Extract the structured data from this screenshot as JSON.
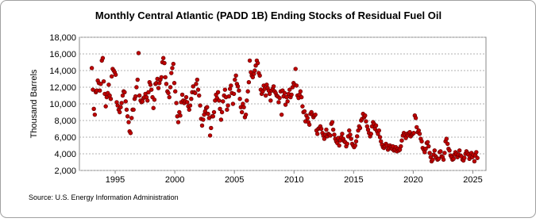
{
  "chart_data": {
    "type": "scatter",
    "title": "Monthly Central Atlantic (PADD 1B) Ending Stocks of Residual Fuel Oil",
    "y_label": "Thousand Barrels",
    "source": "Source: U.S. Energy Information Administration",
    "color": "#c00000",
    "grid": true,
    "xlim": [
      1992,
      2026.1
    ],
    "xticks": [
      1995,
      2000,
      2005,
      2010,
      2015,
      2020,
      2025
    ],
    "ylim": [
      2000,
      18000
    ],
    "yticks": [
      {
        "value": 2000,
        "label": "2,000"
      },
      {
        "value": 4000,
        "label": "4,000"
      },
      {
        "value": 6000,
        "label": "6,000"
      },
      {
        "value": 8000,
        "label": "8,000"
      },
      {
        "value": 10000,
        "label": "10,000"
      },
      {
        "value": 12000,
        "label": "12,000"
      },
      {
        "value": 14000,
        "label": "14,000"
      },
      {
        "value": 16000,
        "label": "16,000"
      },
      {
        "value": 18000,
        "label": "18,000"
      }
    ],
    "x": [
      1993.04,
      1993.13,
      1993.21,
      1993.29,
      1993.38,
      1993.46,
      1993.54,
      1993.63,
      1993.71,
      1993.79,
      1993.88,
      1993.96,
      1994.04,
      1994.13,
      1994.21,
      1994.29,
      1994.38,
      1994.46,
      1994.54,
      1994.63,
      1994.71,
      1994.79,
      1994.88,
      1994.96,
      1995.04,
      1995.13,
      1995.21,
      1995.29,
      1995.38,
      1995.46,
      1995.54,
      1995.63,
      1995.71,
      1995.79,
      1995.88,
      1995.96,
      1996.04,
      1996.13,
      1996.21,
      1996.29,
      1996.38,
      1996.46,
      1996.54,
      1996.63,
      1996.71,
      1996.79,
      1996.88,
      1996.96,
      1997.04,
      1997.13,
      1997.21,
      1997.29,
      1997.38,
      1997.46,
      1997.54,
      1997.63,
      1997.71,
      1997.79,
      1997.88,
      1997.96,
      1998.04,
      1998.13,
      1998.21,
      1998.29,
      1998.38,
      1998.46,
      1998.54,
      1998.63,
      1998.71,
      1998.79,
      1998.88,
      1998.96,
      1999.04,
      1999.13,
      1999.21,
      1999.29,
      1999.38,
      1999.46,
      1999.54,
      1999.63,
      1999.71,
      1999.79,
      1999.88,
      1999.96,
      2000.04,
      2000.13,
      2000.21,
      2000.29,
      2000.38,
      2000.46,
      2000.54,
      2000.63,
      2000.71,
      2000.79,
      2000.88,
      2000.96,
      2001.04,
      2001.13,
      2001.21,
      2001.29,
      2001.38,
      2001.46,
      2001.54,
      2001.63,
      2001.71,
      2001.79,
      2001.88,
      2001.96,
      2002.04,
      2002.13,
      2002.21,
      2002.29,
      2002.38,
      2002.46,
      2002.54,
      2002.63,
      2002.71,
      2002.79,
      2002.88,
      2002.96,
      2003.04,
      2003.13,
      2003.21,
      2003.29,
      2003.38,
      2003.46,
      2003.54,
      2003.63,
      2003.71,
      2003.79,
      2003.88,
      2003.96,
      2004.04,
      2004.13,
      2004.21,
      2004.29,
      2004.38,
      2004.46,
      2004.54,
      2004.63,
      2004.71,
      2004.79,
      2004.88,
      2004.96,
      2005.04,
      2005.13,
      2005.21,
      2005.29,
      2005.38,
      2005.46,
      2005.54,
      2005.63,
      2005.71,
      2005.79,
      2005.88,
      2005.96,
      2006.04,
      2006.13,
      2006.21,
      2006.29,
      2006.38,
      2006.46,
      2006.54,
      2006.63,
      2006.71,
      2006.79,
      2006.88,
      2006.96,
      2007.04,
      2007.13,
      2007.21,
      2007.29,
      2007.38,
      2007.46,
      2007.54,
      2007.63,
      2007.71,
      2007.79,
      2007.88,
      2007.96,
      2008.04,
      2008.13,
      2008.21,
      2008.29,
      2008.38,
      2008.46,
      2008.54,
      2008.63,
      2008.71,
      2008.79,
      2008.88,
      2008.96,
      2009.04,
      2009.13,
      2009.21,
      2009.29,
      2009.38,
      2009.46,
      2009.54,
      2009.63,
      2009.71,
      2009.79,
      2009.88,
      2009.96,
      2010.04,
      2010.13,
      2010.21,
      2010.29,
      2010.38,
      2010.46,
      2010.54,
      2010.63,
      2010.71,
      2010.79,
      2010.88,
      2010.96,
      2011.04,
      2011.13,
      2011.21,
      2011.29,
      2011.38,
      2011.46,
      2011.54,
      2011.63,
      2011.71,
      2011.79,
      2011.88,
      2011.96,
      2012.04,
      2012.13,
      2012.21,
      2012.29,
      2012.38,
      2012.46,
      2012.54,
      2012.63,
      2012.71,
      2012.79,
      2012.88,
      2012.96,
      2013.04,
      2013.13,
      2013.21,
      2013.29,
      2013.38,
      2013.46,
      2013.54,
      2013.63,
      2013.71,
      2013.79,
      2013.88,
      2013.96,
      2014.04,
      2014.13,
      2014.21,
      2014.29,
      2014.38,
      2014.46,
      2014.54,
      2014.63,
      2014.71,
      2014.79,
      2014.88,
      2014.96,
      2015.04,
      2015.13,
      2015.21,
      2015.29,
      2015.38,
      2015.46,
      2015.54,
      2015.63,
      2015.71,
      2015.79,
      2015.88,
      2015.96,
      2016.04,
      2016.13,
      2016.21,
      2016.29,
      2016.38,
      2016.46,
      2016.54,
      2016.63,
      2016.71,
      2016.79,
      2016.88,
      2016.96,
      2017.04,
      2017.13,
      2017.21,
      2017.29,
      2017.38,
      2017.46,
      2017.54,
      2017.63,
      2017.71,
      2017.79,
      2017.88,
      2017.96,
      2018.04,
      2018.13,
      2018.21,
      2018.29,
      2018.38,
      2018.46,
      2018.54,
      2018.63,
      2018.71,
      2018.79,
      2018.88,
      2018.96,
      2019.04,
      2019.13,
      2019.21,
      2019.29,
      2019.38,
      2019.46,
      2019.54,
      2019.63,
      2019.71,
      2019.79,
      2019.88,
      2019.96,
      2020.04,
      2020.13,
      2020.21,
      2020.29,
      2020.38,
      2020.46,
      2020.54,
      2020.63,
      2020.71,
      2020.79,
      2020.88,
      2020.96,
      2021.04,
      2021.13,
      2021.21,
      2021.29,
      2021.38,
      2021.46,
      2021.54,
      2021.63,
      2021.71,
      2021.79,
      2021.88,
      2021.96,
      2022.04,
      2022.13,
      2022.21,
      2022.29,
      2022.38,
      2022.46,
      2022.54,
      2022.63,
      2022.71,
      2022.79,
      2022.88,
      2022.96,
      2023.04,
      2023.13,
      2023.21,
      2023.29,
      2023.38,
      2023.46,
      2023.54,
      2023.63,
      2023.71,
      2023.79,
      2023.88,
      2023.96,
      2024.04,
      2024.13,
      2024.21,
      2024.29,
      2024.38,
      2024.46,
      2024.54,
      2024.63,
      2024.71,
      2024.79,
      2024.88,
      2024.96,
      2025.04,
      2025.13,
      2025.21,
      2025.29,
      2025.38
    ],
    "values": [
      14300,
      11700,
      9400,
      8700,
      11400,
      11600,
      12800,
      12500,
      11600,
      12400,
      15200,
      15500,
      12700,
      11200,
      9700,
      10800,
      11300,
      12300,
      11000,
      10600,
      13300,
      14200,
      14000,
      13800,
      13500,
      10200,
      9800,
      9300,
      9000,
      9600,
      10100,
      11000,
      11500,
      11400,
      10300,
      9300,
      8500,
      7800,
      6700,
      6500,
      8300,
      9300,
      9300,
      10600,
      10900,
      12000,
      12900,
      16100,
      11000,
      10400,
      10200,
      10300,
      10700,
      10800,
      11200,
      10800,
      10400,
      11400,
      12600,
      12300,
      11700,
      10800,
      9500,
      10500,
      12400,
      12500,
      13000,
      11900,
      12500,
      12900,
      13200,
      15000,
      15500,
      14900,
      13200,
      12400,
      11500,
      11300,
      10800,
      12000,
      13700,
      14300,
      14800,
      12500,
      11500,
      10100,
      8500,
      7800,
      9000,
      8600,
      10200,
      11100,
      10400,
      10100,
      10300,
      10800,
      10200,
      9700,
      9300,
      9800,
      10600,
      11400,
      12100,
      11400,
      11300,
      12400,
      12900,
      11700,
      11000,
      9800,
      8200,
      7400,
      8100,
      8700,
      9100,
      9500,
      9600,
      8800,
      8300,
      6200,
      7100,
      8500,
      8500,
      9000,
      10400,
      11100,
      10700,
      11400,
      10400,
      9400,
      8100,
      9000,
      10300,
      11000,
      11700,
      10800,
      9300,
      9800,
      10900,
      11800,
      12200,
      11300,
      10000,
      11200,
      12900,
      13400,
      12400,
      12100,
      11600,
      10600,
      9600,
      9000,
      10000,
      9600,
      8400,
      8700,
      10400,
      11500,
      12600,
      15200,
      13800,
      13400,
      13200,
      13600,
      14000,
      14600,
      15200,
      14900,
      13700,
      13400,
      11700,
      11200,
      11500,
      12200,
      11800,
      11000,
      12300,
      11900,
      11600,
      11200,
      10400,
      11600,
      11800,
      12100,
      11500,
      11300,
      11000,
      10900,
      10200,
      10700,
      11500,
      8700,
      11600,
      10900,
      11300,
      9900,
      10800,
      10300,
      11200,
      11700,
      10800,
      11100,
      12000,
      12500,
      12300,
      14200,
      12200,
      11000,
      10700,
      11100,
      11500,
      10800,
      9700,
      9000,
      9100,
      7900,
      8600,
      8300,
      7800,
      7500,
      8800,
      9000,
      8700,
      8400,
      8600,
      8700,
      6800,
      6400,
      7000,
      7100,
      7300,
      7000,
      6500,
      6200,
      5800,
      6300,
      6900,
      6100,
      6400,
      6300,
      6200,
      7600,
      7800,
      6900,
      6300,
      5800,
      5500,
      5300,
      5900,
      5000,
      5600,
      6000,
      6400,
      5800,
      5500,
      5400,
      4900,
      5200,
      6100,
      6800,
      6300,
      5800,
      5200,
      5000,
      4800,
      5000,
      5500,
      6100,
      6800,
      7300,
      7100,
      8000,
      8200,
      8800,
      8400,
      8600,
      7900,
      7300,
      6900,
      6500,
      6100,
      6400,
      7300,
      7800,
      7600,
      7000,
      7400,
      6700,
      6400,
      6800,
      6000,
      5500,
      5100,
      4800,
      4700,
      4900,
      5200,
      5000,
      4500,
      4700,
      5000,
      4800,
      4600,
      4900,
      4400,
      4500,
      4800,
      4300,
      4600,
      4400,
      4500,
      4900,
      5600,
      6200,
      6500,
      6300,
      5900,
      6400,
      6200,
      6500,
      6600,
      6100,
      6300,
      6400,
      6500,
      8600,
      8300,
      7200,
      6600,
      6800,
      6400,
      5800,
      5500,
      4700,
      4500,
      4200,
      4600,
      5300,
      5400,
      4900,
      4100,
      3600,
      3100,
      3300,
      3900,
      4400,
      3700,
      3500,
      3300,
      3400,
      4200,
      4300,
      3700,
      3600,
      3300,
      4100,
      5500,
      5800,
      5200,
      4600,
      4400,
      3800,
      3600,
      3300,
      3400,
      3900,
      4200,
      4000,
      3600,
      3900,
      4400,
      3800,
      3700,
      3300,
      3200,
      3500,
      4000,
      4300,
      4100,
      3900,
      3400,
      3700,
      4100,
      3600,
      3900,
      3100,
      3800,
      4200,
      3500
    ]
  }
}
